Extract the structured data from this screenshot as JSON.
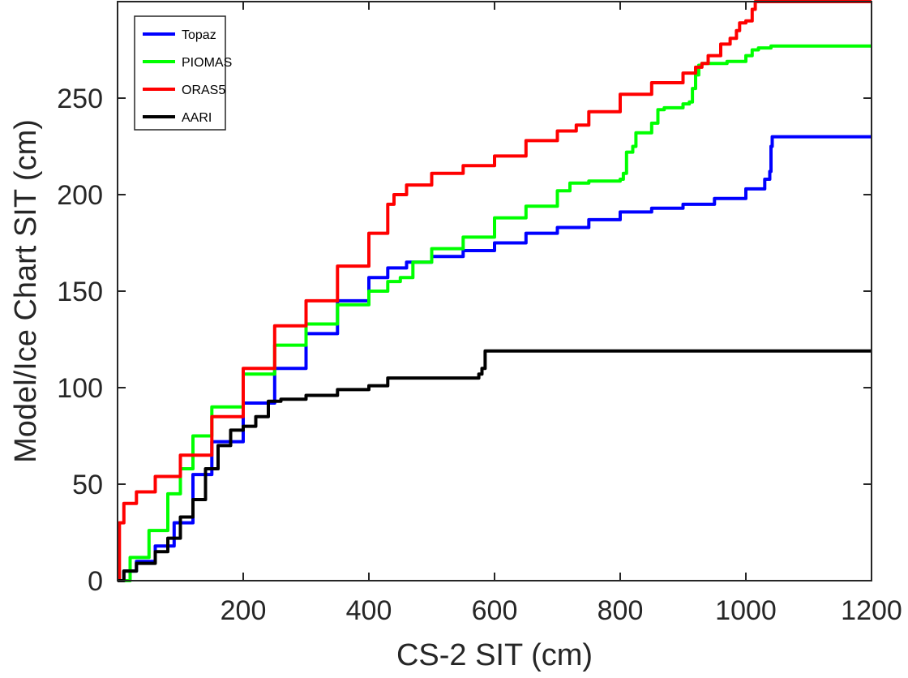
{
  "chart_data": {
    "type": "line",
    "title": "",
    "xlabel": "CS-2 SIT (cm)",
    "ylabel": "Model/Ice Chart SIT (cm)",
    "xlim": [
      0,
      1200
    ],
    "ylim": [
      0,
      300
    ],
    "xticks": [
      200,
      400,
      600,
      800,
      1000,
      1200
    ],
    "yticks": [
      0,
      50,
      100,
      150,
      200,
      250
    ],
    "grid": false,
    "legend_position": "top-left",
    "series": [
      {
        "name": "Topaz",
        "color": "#0000ff",
        "points": [
          [
            0,
            0
          ],
          [
            10,
            5
          ],
          [
            30,
            10
          ],
          [
            60,
            18
          ],
          [
            90,
            30
          ],
          [
            120,
            55
          ],
          [
            150,
            72
          ],
          [
            200,
            92
          ],
          [
            250,
            110
          ],
          [
            300,
            128
          ],
          [
            350,
            145
          ],
          [
            400,
            157
          ],
          [
            430,
            162
          ],
          [
            460,
            165
          ],
          [
            500,
            168
          ],
          [
            550,
            171
          ],
          [
            600,
            175
          ],
          [
            650,
            180
          ],
          [
            700,
            183
          ],
          [
            750,
            187
          ],
          [
            800,
            191
          ],
          [
            850,
            193
          ],
          [
            900,
            195
          ],
          [
            950,
            198
          ],
          [
            1000,
            203
          ],
          [
            1030,
            208
          ],
          [
            1038,
            212
          ],
          [
            1040,
            225
          ],
          [
            1042,
            230
          ],
          [
            1200,
            230
          ]
        ]
      },
      {
        "name": "PIOMAS",
        "color": "#00ff00",
        "points": [
          [
            0,
            0
          ],
          [
            20,
            12
          ],
          [
            50,
            26
          ],
          [
            80,
            45
          ],
          [
            100,
            58
          ],
          [
            120,
            75
          ],
          [
            150,
            90
          ],
          [
            200,
            107
          ],
          [
            250,
            122
          ],
          [
            300,
            133
          ],
          [
            350,
            143
          ],
          [
            400,
            150
          ],
          [
            430,
            155
          ],
          [
            450,
            157
          ],
          [
            470,
            165
          ],
          [
            500,
            172
          ],
          [
            550,
            178
          ],
          [
            600,
            188
          ],
          [
            650,
            194
          ],
          [
            700,
            202
          ],
          [
            720,
            206
          ],
          [
            750,
            207
          ],
          [
            800,
            208
          ],
          [
            805,
            211
          ],
          [
            810,
            222
          ],
          [
            820,
            225
          ],
          [
            825,
            232
          ],
          [
            850,
            237
          ],
          [
            860,
            244
          ],
          [
            870,
            245
          ],
          [
            900,
            247
          ],
          [
            910,
            248
          ],
          [
            915,
            255
          ],
          [
            920,
            262
          ],
          [
            925,
            267
          ],
          [
            930,
            268
          ],
          [
            970,
            269
          ],
          [
            1000,
            272
          ],
          [
            1010,
            275
          ],
          [
            1020,
            276
          ],
          [
            1030,
            276
          ],
          [
            1040,
            277
          ],
          [
            1200,
            277
          ]
        ]
      },
      {
        "name": "ORAS5",
        "color": "#ff0000",
        "points": [
          [
            0,
            0
          ],
          [
            3,
            30
          ],
          [
            10,
            40
          ],
          [
            30,
            46
          ],
          [
            60,
            54
          ],
          [
            100,
            65
          ],
          [
            150,
            85
          ],
          [
            200,
            110
          ],
          [
            250,
            132
          ],
          [
            300,
            145
          ],
          [
            350,
            163
          ],
          [
            400,
            180
          ],
          [
            430,
            195
          ],
          [
            440,
            200
          ],
          [
            460,
            205
          ],
          [
            500,
            211
          ],
          [
            550,
            215
          ],
          [
            600,
            220
          ],
          [
            650,
            228
          ],
          [
            700,
            233
          ],
          [
            730,
            236
          ],
          [
            750,
            243
          ],
          [
            800,
            252
          ],
          [
            850,
            258
          ],
          [
            900,
            263
          ],
          [
            920,
            266
          ],
          [
            930,
            268
          ],
          [
            940,
            272
          ],
          [
            950,
            272
          ],
          [
            960,
            278
          ],
          [
            975,
            281
          ],
          [
            985,
            285
          ],
          [
            990,
            289
          ],
          [
            1000,
            290
          ],
          [
            1010,
            296
          ],
          [
            1015,
            300
          ],
          [
            1200,
            300
          ]
        ]
      },
      {
        "name": "AARI",
        "color": "#000000",
        "points": [
          [
            0,
            0
          ],
          [
            10,
            5
          ],
          [
            30,
            9
          ],
          [
            60,
            15
          ],
          [
            80,
            22
          ],
          [
            100,
            33
          ],
          [
            120,
            42
          ],
          [
            140,
            58
          ],
          [
            160,
            70
          ],
          [
            180,
            78
          ],
          [
            200,
            80
          ],
          [
            220,
            85
          ],
          [
            240,
            93
          ],
          [
            260,
            94
          ],
          [
            300,
            96
          ],
          [
            350,
            99
          ],
          [
            400,
            101
          ],
          [
            430,
            105
          ],
          [
            500,
            105
          ],
          [
            570,
            105
          ],
          [
            575,
            107
          ],
          [
            580,
            110
          ],
          [
            585,
            119
          ],
          [
            600,
            119
          ],
          [
            1200,
            119
          ]
        ]
      }
    ]
  }
}
